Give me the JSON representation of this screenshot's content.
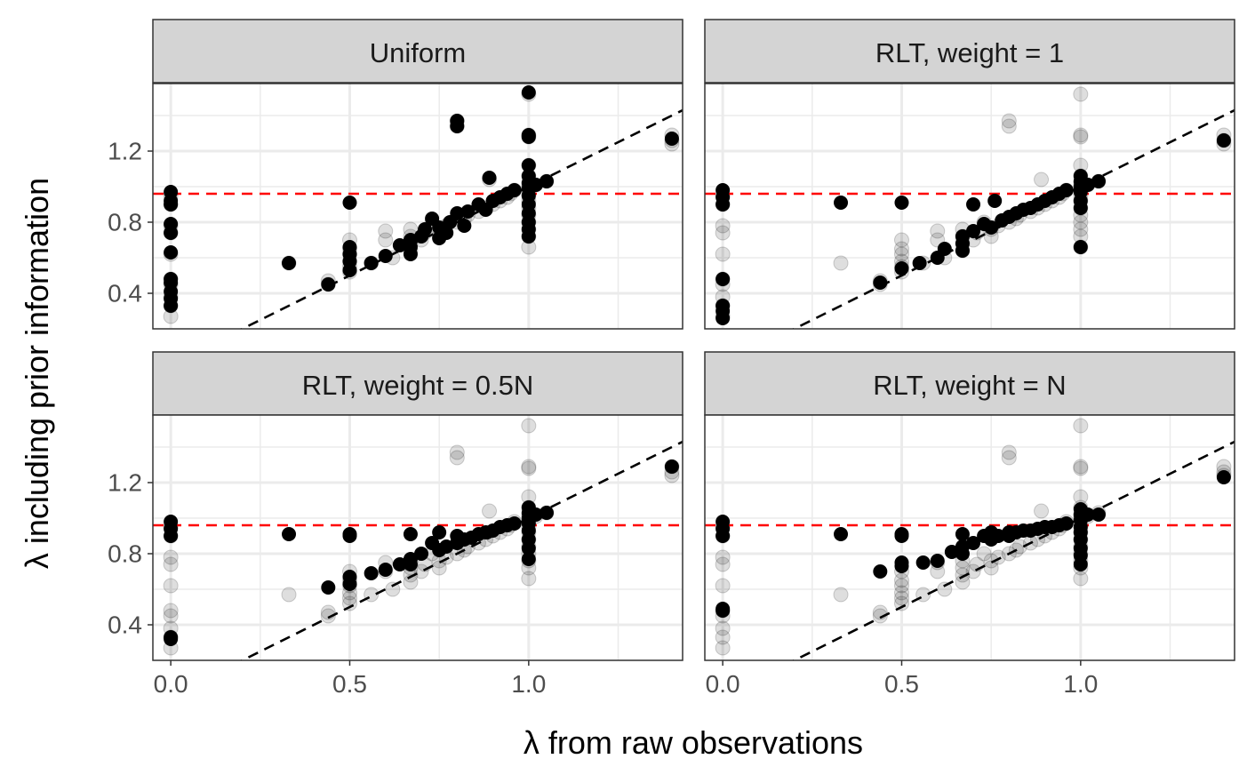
{
  "chart_data": {
    "type": "scatter",
    "facet_layout": "2x2 grid",
    "xlabel": "λ from raw observations",
    "ylabel": "λ including prior information",
    "xlim": [
      -0.05,
      1.43
    ],
    "ylim": [
      0.2,
      1.58
    ],
    "x_ticks": [
      0.0,
      0.5,
      1.0
    ],
    "x_tick_labels": [
      "0.0",
      "0.5",
      "1.0"
    ],
    "y_ticks": [
      0.4,
      0.8,
      1.2
    ],
    "y_tick_labels": [
      "0.4",
      "0.8",
      "1.2"
    ],
    "grid": true,
    "reference_line": {
      "type": "identity",
      "style": "dashed",
      "color": "#000000"
    },
    "horizontal_line": {
      "y": 0.96,
      "style": "dashed",
      "color": "#ff0000"
    },
    "point_color": "#000000",
    "background_point_opacity": 0.13,
    "raw_reference_points": [
      [
        0,
        0.95
      ],
      [
        0,
        0.9
      ],
      [
        0,
        0.78
      ],
      [
        0,
        0.74
      ],
      [
        0,
        0.62
      ],
      [
        0,
        0.48
      ],
      [
        0,
        0.45
      ],
      [
        0,
        0.38
      ],
      [
        0,
        0.33
      ],
      [
        0,
        0.27
      ],
      [
        0.33,
        0.57
      ],
      [
        0.44,
        0.45
      ],
      [
        0.44,
        0.47
      ],
      [
        0.5,
        0.7
      ],
      [
        0.5,
        0.65
      ],
      [
        0.5,
        0.62
      ],
      [
        0.5,
        0.58
      ],
      [
        0.5,
        0.55
      ],
      [
        0.5,
        0.52
      ],
      [
        0.56,
        0.57
      ],
      [
        0.6,
        0.7
      ],
      [
        0.6,
        0.75
      ],
      [
        0.62,
        0.6
      ],
      [
        0.67,
        0.64
      ],
      [
        0.67,
        0.68
      ],
      [
        0.67,
        0.72
      ],
      [
        0.67,
        0.76
      ],
      [
        0.7,
        0.7
      ],
      [
        0.71,
        0.74
      ],
      [
        0.73,
        0.8
      ],
      [
        0.75,
        0.76
      ],
      [
        0.75,
        0.72
      ],
      [
        0.77,
        0.78
      ],
      [
        0.8,
        0.8
      ],
      [
        0.8,
        1.37
      ],
      [
        0.8,
        1.34
      ],
      [
        0.82,
        0.82
      ],
      [
        0.83,
        0.84
      ],
      [
        0.86,
        0.86
      ],
      [
        0.88,
        0.88
      ],
      [
        0.89,
        1.04
      ],
      [
        0.9,
        0.9
      ],
      [
        0.92,
        0.92
      ],
      [
        0.94,
        0.94
      ],
      [
        0.95,
        0.96
      ],
      [
        0.96,
        0.98
      ],
      [
        1.0,
        1.52
      ],
      [
        1.0,
        1.29
      ],
      [
        1.0,
        1.28
      ],
      [
        1.0,
        1.12
      ],
      [
        1.0,
        1.06
      ],
      [
        1.0,
        1.02
      ],
      [
        1.0,
        1.0
      ],
      [
        1.0,
        0.98
      ],
      [
        1.0,
        0.95
      ],
      [
        1.0,
        0.92
      ],
      [
        1.0,
        0.88
      ],
      [
        1.0,
        0.84
      ],
      [
        1.0,
        0.8
      ],
      [
        1.0,
        0.76
      ],
      [
        1.0,
        0.72
      ],
      [
        1.0,
        0.66
      ],
      [
        1.02,
        1.01
      ],
      [
        1.05,
        1.03
      ],
      [
        1.4,
        1.29
      ],
      [
        1.4,
        1.26
      ],
      [
        1.4,
        1.24
      ]
    ],
    "panels": [
      {
        "title": "Uniform",
        "points": [
          [
            0,
            0.97
          ],
          [
            0,
            0.92
          ],
          [
            0,
            0.9
          ],
          [
            0,
            0.79
          ],
          [
            0,
            0.74
          ],
          [
            0,
            0.63
          ],
          [
            0,
            0.48
          ],
          [
            0,
            0.46
          ],
          [
            0,
            0.41
          ],
          [
            0,
            0.37
          ],
          [
            0,
            0.33
          ],
          [
            0.33,
            0.57
          ],
          [
            0.44,
            0.45
          ],
          [
            0.5,
            0.91
          ],
          [
            0.5,
            0.66
          ],
          [
            0.5,
            0.62
          ],
          [
            0.5,
            0.58
          ],
          [
            0.5,
            0.53
          ],
          [
            0.56,
            0.57
          ],
          [
            0.6,
            0.61
          ],
          [
            0.64,
            0.67
          ],
          [
            0.67,
            0.62
          ],
          [
            0.67,
            0.66
          ],
          [
            0.67,
            0.7
          ],
          [
            0.7,
            0.72
          ],
          [
            0.71,
            0.76
          ],
          [
            0.73,
            0.82
          ],
          [
            0.75,
            0.71
          ],
          [
            0.75,
            0.77
          ],
          [
            0.77,
            0.74
          ],
          [
            0.78,
            0.8
          ],
          [
            0.8,
            0.85
          ],
          [
            0.8,
            1.37
          ],
          [
            0.8,
            1.34
          ],
          [
            0.82,
            0.78
          ],
          [
            0.83,
            0.86
          ],
          [
            0.86,
            0.9
          ],
          [
            0.88,
            0.87
          ],
          [
            0.89,
            1.05
          ],
          [
            0.9,
            0.92
          ],
          [
            0.92,
            0.94
          ],
          [
            0.94,
            0.96
          ],
          [
            0.96,
            0.98
          ],
          [
            1.0,
            1.53
          ],
          [
            1.0,
            1.29
          ],
          [
            1.0,
            1.28
          ],
          [
            1.0,
            1.12
          ],
          [
            1.0,
            1.06
          ],
          [
            1.0,
            1.02
          ],
          [
            1.0,
            0.99
          ],
          [
            1.0,
            0.95
          ],
          [
            1.0,
            0.9
          ],
          [
            1.0,
            0.85
          ],
          [
            1.0,
            0.8
          ],
          [
            1.0,
            0.76
          ],
          [
            1.0,
            0.72
          ],
          [
            1.02,
            1.01
          ],
          [
            1.05,
            1.03
          ],
          [
            1.4,
            1.27
          ]
        ]
      },
      {
        "title": "RLT, weight = 1",
        "points": [
          [
            0,
            0.98
          ],
          [
            0,
            0.94
          ],
          [
            0,
            0.9
          ],
          [
            0,
            0.48
          ],
          [
            0,
            0.33
          ],
          [
            0,
            0.3
          ],
          [
            0,
            0.26
          ],
          [
            0.33,
            0.91
          ],
          [
            0.44,
            0.46
          ],
          [
            0.5,
            0.91
          ],
          [
            0.5,
            0.54
          ],
          [
            0.55,
            0.57
          ],
          [
            0.6,
            0.6
          ],
          [
            0.62,
            0.65
          ],
          [
            0.67,
            0.64
          ],
          [
            0.67,
            0.68
          ],
          [
            0.67,
            0.72
          ],
          [
            0.7,
            0.75
          ],
          [
            0.7,
            0.9
          ],
          [
            0.73,
            0.79
          ],
          [
            0.75,
            0.77
          ],
          [
            0.76,
            0.92
          ],
          [
            0.78,
            0.81
          ],
          [
            0.8,
            0.83
          ],
          [
            0.82,
            0.85
          ],
          [
            0.84,
            0.87
          ],
          [
            0.86,
            0.88
          ],
          [
            0.88,
            0.9
          ],
          [
            0.9,
            0.92
          ],
          [
            0.92,
            0.94
          ],
          [
            0.94,
            0.96
          ],
          [
            0.96,
            0.98
          ],
          [
            1.0,
            1.06
          ],
          [
            1.0,
            1.03
          ],
          [
            1.0,
            1.0
          ],
          [
            1.0,
            0.97
          ],
          [
            1.0,
            0.92
          ],
          [
            1.0,
            0.88
          ],
          [
            1.0,
            0.66
          ],
          [
            1.02,
            1.01
          ],
          [
            1.05,
            1.03
          ],
          [
            1.4,
            1.26
          ]
        ]
      },
      {
        "title": "RLT, weight = 0.5N",
        "points": [
          [
            0,
            0.98
          ],
          [
            0,
            0.94
          ],
          [
            0,
            0.9
          ],
          [
            0,
            0.33
          ],
          [
            0,
            0.32
          ],
          [
            0.33,
            0.91
          ],
          [
            0.44,
            0.61
          ],
          [
            0.5,
            0.91
          ],
          [
            0.5,
            0.9
          ],
          [
            0.5,
            0.67
          ],
          [
            0.5,
            0.63
          ],
          [
            0.56,
            0.69
          ],
          [
            0.6,
            0.71
          ],
          [
            0.64,
            0.74
          ],
          [
            0.67,
            0.91
          ],
          [
            0.67,
            0.77
          ],
          [
            0.67,
            0.74
          ],
          [
            0.7,
            0.8
          ],
          [
            0.73,
            0.86
          ],
          [
            0.75,
            0.92
          ],
          [
            0.75,
            0.82
          ],
          [
            0.77,
            0.84
          ],
          [
            0.8,
            0.9
          ],
          [
            0.8,
            0.86
          ],
          [
            0.82,
            0.88
          ],
          [
            0.84,
            0.89
          ],
          [
            0.86,
            0.91
          ],
          [
            0.88,
            0.92
          ],
          [
            0.9,
            0.93
          ],
          [
            0.92,
            0.95
          ],
          [
            0.94,
            0.96
          ],
          [
            0.96,
            0.97
          ],
          [
            1.0,
            1.06
          ],
          [
            1.0,
            1.03
          ],
          [
            1.0,
            1.0
          ],
          [
            1.0,
            0.97
          ],
          [
            1.0,
            0.93
          ],
          [
            1.0,
            0.88
          ],
          [
            1.0,
            0.83
          ],
          [
            1.0,
            0.77
          ],
          [
            1.02,
            1.02
          ],
          [
            1.05,
            1.03
          ],
          [
            1.4,
            1.29
          ]
        ]
      },
      {
        "title": "RLT, weight = N",
        "points": [
          [
            0,
            0.98
          ],
          [
            0,
            0.94
          ],
          [
            0,
            0.9
          ],
          [
            0,
            0.49
          ],
          [
            0,
            0.48
          ],
          [
            0.33,
            0.91
          ],
          [
            0.44,
            0.7
          ],
          [
            0.5,
            0.91
          ],
          [
            0.5,
            0.9
          ],
          [
            0.5,
            0.75
          ],
          [
            0.5,
            0.73
          ],
          [
            0.56,
            0.75
          ],
          [
            0.6,
            0.76
          ],
          [
            0.64,
            0.81
          ],
          [
            0.67,
            0.91
          ],
          [
            0.67,
            0.84
          ],
          [
            0.67,
            0.8
          ],
          [
            0.7,
            0.86
          ],
          [
            0.73,
            0.9
          ],
          [
            0.75,
            0.92
          ],
          [
            0.75,
            0.88
          ],
          [
            0.77,
            0.9
          ],
          [
            0.8,
            0.92
          ],
          [
            0.8,
            0.9
          ],
          [
            0.82,
            0.92
          ],
          [
            0.84,
            0.93
          ],
          [
            0.86,
            0.93
          ],
          [
            0.88,
            0.94
          ],
          [
            0.9,
            0.95
          ],
          [
            0.92,
            0.95
          ],
          [
            0.94,
            0.96
          ],
          [
            0.96,
            0.97
          ],
          [
            1.0,
            1.05
          ],
          [
            1.0,
            1.02
          ],
          [
            1.0,
            0.99
          ],
          [
            1.0,
            0.95
          ],
          [
            1.0,
            0.92
          ],
          [
            1.0,
            0.88
          ],
          [
            1.0,
            0.83
          ],
          [
            1.0,
            0.79
          ],
          [
            1.0,
            0.74
          ],
          [
            1.02,
            1.02
          ],
          [
            1.05,
            1.02
          ],
          [
            1.4,
            1.23
          ]
        ]
      }
    ]
  }
}
